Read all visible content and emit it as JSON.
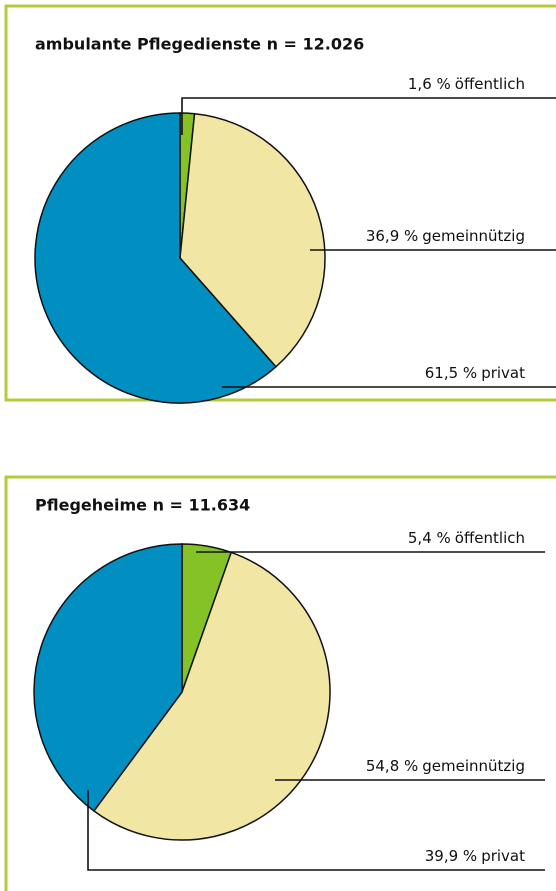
{
  "chart_data": [
    {
      "type": "pie",
      "title": "ambulante Pflegedienste n = 12.026",
      "categories": [
        "öffentlich",
        "gemeinnützig",
        "privat"
      ],
      "values": [
        1.6,
        36.9,
        61.5
      ],
      "value_labels": [
        "1,6 %",
        "36,9 %",
        "61,5 %"
      ],
      "colors": [
        "#84c225",
        "#f2e6a4",
        "#008fc0"
      ]
    },
    {
      "type": "pie",
      "title": "Pflegeheime n = 11.634",
      "categories": [
        "öffentlich",
        "gemeinnützig",
        "privat"
      ],
      "values": [
        5.4,
        54.8,
        39.9
      ],
      "value_labels": [
        "5,4 %",
        "54,8 %",
        "39,9 %"
      ],
      "colors": [
        "#84c225",
        "#f2e6a4",
        "#008fc0"
      ]
    }
  ]
}
